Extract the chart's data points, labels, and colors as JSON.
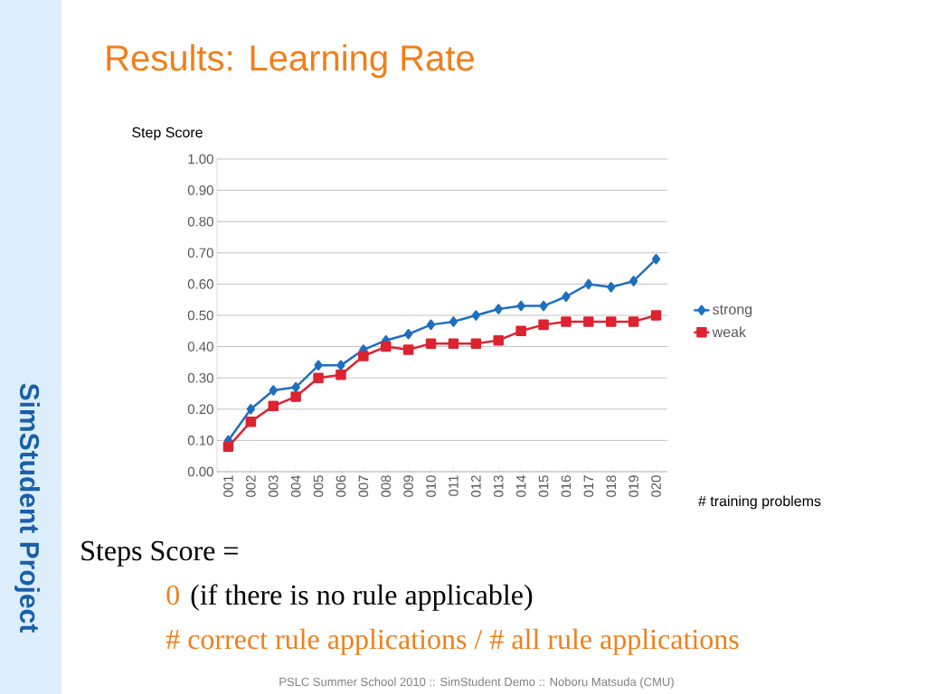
{
  "chart_data": {
    "type": "line",
    "title": "Results: Learning Rate",
    "categories": [
      "001",
      "002",
      "003",
      "004",
      "005",
      "006",
      "007",
      "008",
      "009",
      "010",
      "011",
      "012",
      "013",
      "014",
      "015",
      "016",
      "017",
      "018",
      "019",
      "020"
    ],
    "series": [
      {
        "name": "strong",
        "color": "#1f6fc0",
        "marker": "diamond",
        "values": [
          0.1,
          0.2,
          0.26,
          0.27,
          0.34,
          0.34,
          0.39,
          0.42,
          0.44,
          0.47,
          0.48,
          0.5,
          0.52,
          0.53,
          0.53,
          0.56,
          0.6,
          0.59,
          0.61,
          0.68
        ]
      },
      {
        "name": "weak",
        "color": "#dd2230",
        "marker": "square",
        "values": [
          0.08,
          0.16,
          0.21,
          0.24,
          0.3,
          0.31,
          0.37,
          0.4,
          0.39,
          0.41,
          0.41,
          0.41,
          0.42,
          0.45,
          0.47,
          0.48,
          0.48,
          0.48,
          0.48,
          0.5
        ]
      }
    ],
    "ylim": [
      0,
      1
    ],
    "yticks": [
      {
        "value": 0,
        "label": "0.00"
      },
      {
        "value": 0.1,
        "label": "0.10"
      },
      {
        "value": 0.2,
        "label": "0.20"
      },
      {
        "value": 0.3,
        "label": "0.30"
      },
      {
        "value": 0.4,
        "label": "0.40"
      },
      {
        "value": 0.5,
        "label": "0.50"
      },
      {
        "value": 0.6,
        "label": "0.60"
      },
      {
        "value": 0.7,
        "label": "0.70"
      },
      {
        "value": 0.8,
        "label": "0.80"
      },
      {
        "value": 0.9,
        "label": "0.90"
      },
      {
        "value": 1,
        "label": "1.00"
      }
    ],
    "grid": "y",
    "legend": "right",
    "annotations": [
      "Steps Score =",
      "0",
      "(if there is no rule applicable)",
      "# correct rule applications / # all rule applications",
      "PSLC Summer School 2010 :: SimStudent Demo :: Noboru Matsuda (CMU)",
      "SimStudent Project",
      "Step Score",
      "# training problems"
    ]
  }
}
